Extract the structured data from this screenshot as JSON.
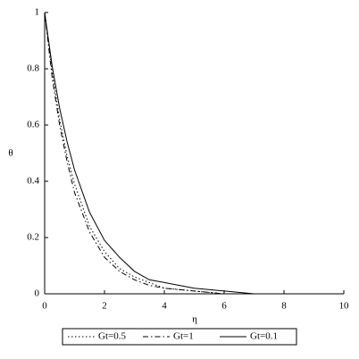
{
  "chart_data": {
    "type": "line",
    "x_label": "η",
    "y_label": "θ",
    "x": [
      0,
      0.25,
      0.5,
      0.75,
      1,
      1.5,
      2,
      2.5,
      3,
      3.5,
      4,
      5,
      6,
      7,
      8
    ],
    "series": [
      {
        "name": "Gt=0.5",
        "color": "#000000",
        "dash": "dotted",
        "values": [
          1,
          0.79,
          0.62,
          0.49,
          0.39,
          0.24,
          0.15,
          0.09,
          0.06,
          0.04,
          0.02,
          0.01,
          0,
          0,
          null
        ]
      },
      {
        "name": "Gt=1",
        "color": "#000000",
        "dash": "dash-dot",
        "values": [
          1,
          0.77,
          0.6,
          0.47,
          0.36,
          0.22,
          0.13,
          0.08,
          0.05,
          0.03,
          0.02,
          0.01,
          0,
          0,
          null
        ]
      },
      {
        "name": "Gt=0.1",
        "color": "#000000",
        "dash": "solid",
        "values": [
          1,
          0.81,
          0.66,
          0.54,
          0.44,
          0.29,
          0.19,
          0.13,
          0.08,
          0.05,
          0.04,
          0.02,
          0.01,
          0,
          0
        ]
      }
    ],
    "xlim": [
      0,
      10
    ],
    "xticks": [
      0,
      2,
      4,
      6,
      8,
      10
    ],
    "ylim": [
      0,
      1
    ],
    "yticks": [
      0,
      0.2,
      0.4,
      0.6,
      0.8,
      1
    ],
    "grid": false,
    "legend": "bottom"
  }
}
